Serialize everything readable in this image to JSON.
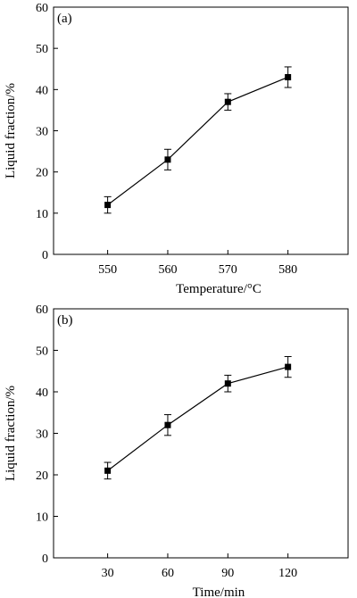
{
  "chart_data": [
    {
      "type": "line",
      "panel_label": "(a)",
      "xlabel": "Temperature/°C",
      "ylabel": "Liquid fraction/%",
      "x": [
        550,
        560,
        570,
        580
      ],
      "x_ticks": [
        "550",
        "560",
        "570",
        "580"
      ],
      "xlim": [
        541,
        590
      ],
      "ylim": [
        0,
        60
      ],
      "y_ticks": [
        "0",
        "10",
        "20",
        "30",
        "40",
        "50",
        "60"
      ],
      "values": [
        12,
        23,
        37,
        43
      ],
      "error": [
        2,
        2.5,
        2,
        2.5
      ],
      "grid": false,
      "marker": "square",
      "color": "#000000"
    },
    {
      "type": "line",
      "panel_label": "(b)",
      "xlabel": "Time/min",
      "ylabel": "Liquid fraction/%",
      "x": [
        30,
        60,
        90,
        120
      ],
      "x_ticks": [
        "30",
        "60",
        "90",
        "120"
      ],
      "xlim": [
        3,
        150
      ],
      "ylim": [
        0,
        60
      ],
      "y_ticks": [
        "0",
        "10",
        "20",
        "30",
        "40",
        "50",
        "60"
      ],
      "values": [
        21,
        32,
        42,
        46
      ],
      "error": [
        2,
        2.5,
        2,
        2.5
      ],
      "grid": false,
      "marker": "square",
      "color": "#000000"
    }
  ]
}
